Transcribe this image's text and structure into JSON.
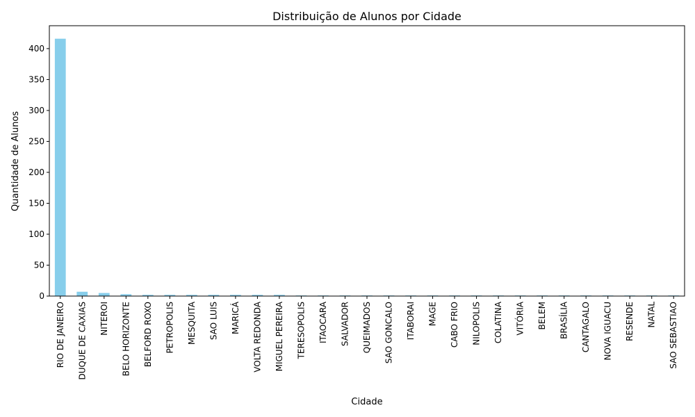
{
  "chart_data": {
    "type": "bar",
    "title": "Distribuição de Alunos por Cidade",
    "xlabel": "Cidade",
    "ylabel": "Quantidade de Alunos",
    "categories": [
      "RIO DE JANEIRO",
      "DUQUE DE CAXIAS",
      "NITEROI",
      "BELO HORIZONTE",
      "BELFORD ROXO",
      "PETROPOLIS",
      "MESQUITA",
      "SAO LUIS",
      "MARICÁ",
      "VOLTA REDONDA",
      "MIGUEL PEREIRA",
      "TERESOPOLIS",
      "ITAOCARA",
      "SALVADOR",
      "QUEIMADOS",
      "SAO GONCALO",
      "ITABORAI",
      "MAGE",
      "CABO FRIO",
      "NILOPOLIS",
      "COLATINA",
      "VITÓRIA",
      "BELEM",
      "BRASÍLIA",
      "CANTAGALO",
      "NOVA IGUACU",
      "RESENDE",
      "NATAL",
      "SAO SEBASTIAO"
    ],
    "values": [
      416,
      7,
      5,
      3,
      2,
      2,
      2,
      2,
      2,
      2,
      2,
      1,
      1,
      1,
      1,
      1,
      1,
      1,
      1,
      1,
      1,
      1,
      1,
      1,
      1,
      1,
      1,
      1,
      1
    ],
    "ylim": [
      0,
      437
    ],
    "yticks": [
      0,
      50,
      100,
      150,
      200,
      250,
      300,
      350,
      400
    ],
    "bar_color": "#87ceeb",
    "grid": false
  }
}
